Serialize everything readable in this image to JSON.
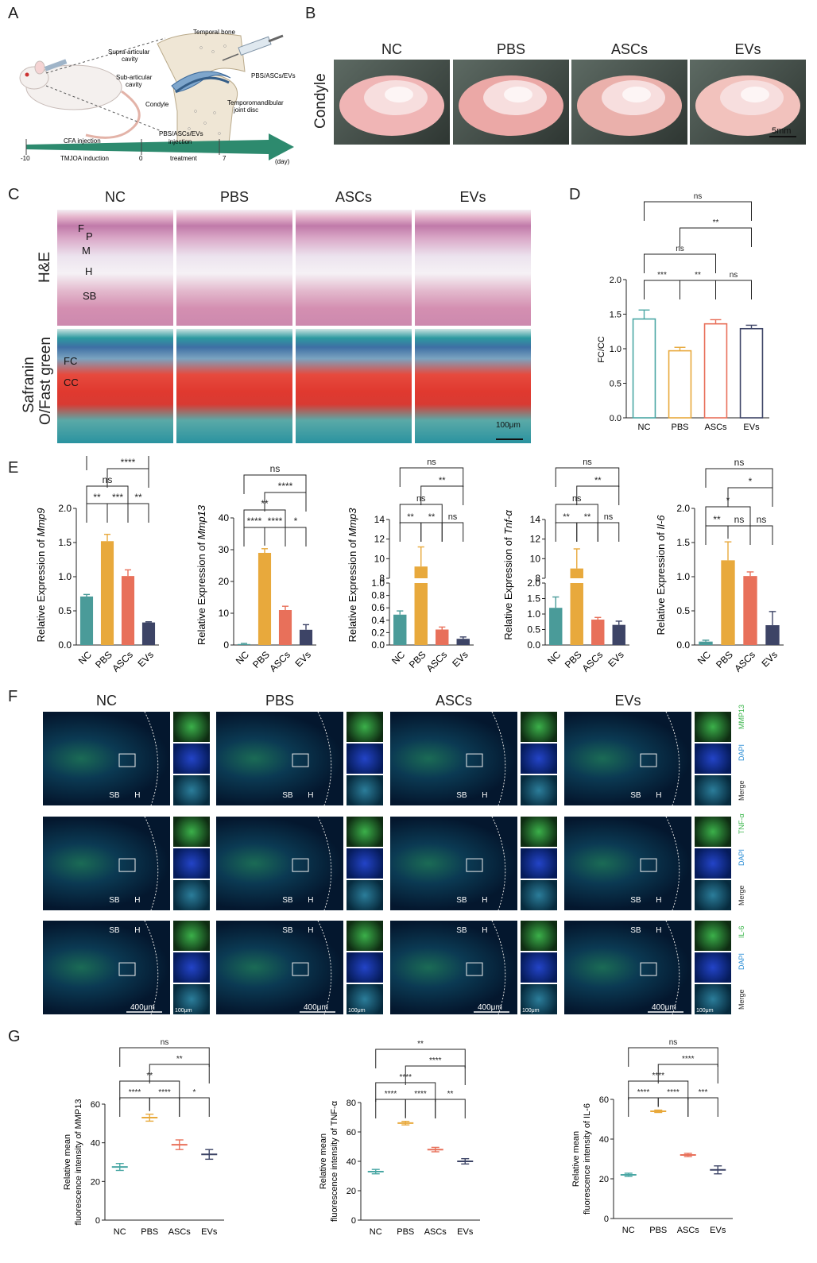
{
  "panels": {
    "a": "A",
    "b": "B",
    "c": "C",
    "d": "D",
    "e": "E",
    "f": "F",
    "g": "G"
  },
  "schematic": {
    "labels": {
      "temporal_bone": "Temporal bone",
      "supra": "Supra-articular",
      "supra2": "cavity",
      "sub": "Sub-articular",
      "sub2": "cavity",
      "condyle": "Condyle",
      "disc": "Temporomandibular",
      "disc2": "joint disc",
      "inj": "PBS/ASCs/EVs"
    },
    "timeline": {
      "cfa": "CFA injection",
      "tmjoa": "TMJOA induction",
      "pbs_inj": "PBS/ASCs/EVs",
      "pbs_inj2": "injection",
      "treatment": "treatment",
      "t_neg10": "-10",
      "t0": "0",
      "t7": "7",
      "day": "(day)"
    }
  },
  "groups": [
    "NC",
    "PBS",
    "ASCs",
    "EVs"
  ],
  "condyle_panel": {
    "row_label": "Condyle",
    "scale": "5mm"
  },
  "histology": {
    "row1": "H&E",
    "row2a": "Safranin",
    "row2b": "O/Fast green",
    "layers": [
      "F",
      "P",
      "M",
      "H",
      "SB"
    ],
    "layers2": [
      "FC",
      "CC"
    ],
    "scale": "100μm"
  },
  "chart_data": [
    {
      "id": "D",
      "type": "bar",
      "categories": [
        "NC",
        "PBS",
        "ASCs",
        "EVs"
      ],
      "values": [
        1.43,
        0.97,
        1.36,
        1.29
      ],
      "errors": [
        0.13,
        0.05,
        0.06,
        0.05
      ],
      "colors": [
        "#4aa7a4",
        "#e8a93c",
        "#e8705a",
        "#3d4466"
      ],
      "style": "outline",
      "ylabel": "FC/CC",
      "ylim": [
        0,
        2.0
      ],
      "yticks": [
        "0.0",
        "0.5",
        "1.0",
        "1.5",
        "2.0"
      ],
      "sig": [
        {
          "a": 0,
          "b": 1,
          "t": "***"
        },
        {
          "a": 1,
          "b": 2,
          "t": "**"
        },
        {
          "a": 2,
          "b": 3,
          "t": "ns"
        },
        {
          "a": 0,
          "b": 2,
          "t": "ns"
        },
        {
          "a": 1,
          "b": 3,
          "t": "**"
        },
        {
          "a": 0,
          "b": 3,
          "t": "ns"
        }
      ]
    },
    {
      "id": "E1",
      "type": "bar",
      "categories": [
        "NC",
        "PBS",
        "ASCs",
        "EVs"
      ],
      "values": [
        0.71,
        1.52,
        1.01,
        0.33
      ],
      "errors": [
        0.03,
        0.1,
        0.09,
        0.01
      ],
      "colors": [
        "#4a9b99",
        "#e8a93c",
        "#e8705a",
        "#3d4466"
      ],
      "style": "filled",
      "ylabel_pre": "Relative Expression of ",
      "ylabel_gene": "Mmp9",
      "ylim": [
        0,
        2.0
      ],
      "yticks": [
        "0.0",
        "0.5",
        "1.0",
        "1.5",
        "2.0"
      ],
      "sig": [
        {
          "a": 0,
          "b": 1,
          "t": "**"
        },
        {
          "a": 1,
          "b": 2,
          "t": "***"
        },
        {
          "a": 2,
          "b": 3,
          "t": "**"
        },
        {
          "a": 0,
          "b": 2,
          "t": "ns"
        },
        {
          "a": 1,
          "b": 3,
          "t": "****"
        },
        {
          "a": 0,
          "b": 3,
          "t": "*"
        }
      ]
    },
    {
      "id": "E2",
      "type": "bar",
      "categories": [
        "NC",
        "PBS",
        "ASCs",
        "EVs"
      ],
      "values": [
        0.3,
        29,
        11,
        4.8
      ],
      "errors": [
        0.2,
        1.3,
        1.2,
        1.6
      ],
      "colors": [
        "#4a9b99",
        "#e8a93c",
        "#e8705a",
        "#3d4466"
      ],
      "style": "filled",
      "ylabel_pre": "Relative Expression of ",
      "ylabel_gene": "Mmp13",
      "ylim": [
        0,
        40
      ],
      "yticks": [
        "0",
        "10",
        "20",
        "30",
        "40"
      ],
      "sig": [
        {
          "a": 0,
          "b": 1,
          "t": "****"
        },
        {
          "a": 1,
          "b": 2,
          "t": "****"
        },
        {
          "a": 2,
          "b": 3,
          "t": "*"
        },
        {
          "a": 0,
          "b": 2,
          "t": "**"
        },
        {
          "a": 1,
          "b": 3,
          "t": "****"
        },
        {
          "a": 0,
          "b": 3,
          "t": "ns"
        }
      ]
    },
    {
      "id": "E3",
      "type": "bar",
      "broken_axis": true,
      "categories": [
        "NC",
        "PBS",
        "ASCs",
        "EVs"
      ],
      "values": [
        0.49,
        9.2,
        0.25,
        0.1
      ],
      "errors": [
        0.06,
        2.0,
        0.04,
        0.03
      ],
      "colors": [
        "#4a9b99",
        "#e8a93c",
        "#e8705a",
        "#3d4466"
      ],
      "style": "filled",
      "ylabel_pre": "Relative Expression of ",
      "ylabel_gene": "Mmp3",
      "ylim_low": [
        0,
        1.0
      ],
      "ylim_high": [
        8,
        14
      ],
      "yticks_low": [
        "0.0",
        "0.2",
        "0.4",
        "0.6",
        "0.8",
        "1.0"
      ],
      "yticks_high": [
        "8",
        "10",
        "12",
        "14"
      ],
      "sig": [
        {
          "a": 0,
          "b": 1,
          "t": "**"
        },
        {
          "a": 1,
          "b": 2,
          "t": "**"
        },
        {
          "a": 2,
          "b": 3,
          "t": "ns"
        },
        {
          "a": 0,
          "b": 2,
          "t": "ns"
        },
        {
          "a": 1,
          "b": 3,
          "t": "**"
        },
        {
          "a": 0,
          "b": 3,
          "t": "ns"
        }
      ]
    },
    {
      "id": "E4",
      "type": "bar",
      "broken_axis": true,
      "categories": [
        "NC",
        "PBS",
        "ASCs",
        "EVs"
      ],
      "values": [
        1.2,
        9.0,
        0.82,
        0.65
      ],
      "errors": [
        0.35,
        2.0,
        0.07,
        0.12
      ],
      "colors": [
        "#4a9b99",
        "#e8a93c",
        "#e8705a",
        "#3d4466"
      ],
      "style": "filled",
      "ylabel_pre": "Relative Expression of ",
      "ylabel_gene": "Tnf-α",
      "ylim_low": [
        0,
        2.0
      ],
      "ylim_high": [
        8,
        14
      ],
      "yticks_low": [
        "0.0",
        "0.5",
        "1.0",
        "1.5",
        "2.0"
      ],
      "yticks_high": [
        "8",
        "10",
        "12",
        "14"
      ],
      "sig": [
        {
          "a": 0,
          "b": 1,
          "t": "**"
        },
        {
          "a": 1,
          "b": 2,
          "t": "**"
        },
        {
          "a": 2,
          "b": 3,
          "t": "ns"
        },
        {
          "a": 0,
          "b": 2,
          "t": "ns"
        },
        {
          "a": 1,
          "b": 3,
          "t": "**"
        },
        {
          "a": 0,
          "b": 3,
          "t": "ns"
        }
      ]
    },
    {
      "id": "E5",
      "type": "bar",
      "categories": [
        "NC",
        "PBS",
        "ASCs",
        "EVs"
      ],
      "values": [
        0.05,
        1.24,
        1.01,
        0.29
      ],
      "errors": [
        0.02,
        0.27,
        0.06,
        0.2
      ],
      "colors": [
        "#4a9b99",
        "#e8a93c",
        "#e8705a",
        "#3d4466"
      ],
      "style": "filled",
      "ylabel_pre": "Relative Expression of ",
      "ylabel_gene": "Il-6",
      "ylim": [
        0,
        2.0
      ],
      "yticks": [
        "0.0",
        "0.5",
        "1.0",
        "1.5",
        "2.0"
      ],
      "sig": [
        {
          "a": 0,
          "b": 1,
          "t": "**"
        },
        {
          "a": 1,
          "b": 2,
          "t": "ns"
        },
        {
          "a": 2,
          "b": 3,
          "t": "ns"
        },
        {
          "a": 0,
          "b": 2,
          "t": "*"
        },
        {
          "a": 1,
          "b": 3,
          "t": "*"
        },
        {
          "a": 0,
          "b": 3,
          "t": "ns"
        }
      ]
    },
    {
      "id": "G1",
      "type": "scatter",
      "categories": [
        "NC",
        "PBS",
        "ASCs",
        "EVs"
      ],
      "values": [
        27.5,
        53,
        39,
        34
      ],
      "errors": [
        1.8,
        1.8,
        2.5,
        2.5
      ],
      "colors": [
        "#4aa7a4",
        "#e8a93c",
        "#e8705a",
        "#3d4466"
      ],
      "ylabel1": "Relative mean",
      "ylabel2": "fluorescence intensity of MMP13",
      "ylim": [
        0,
        60
      ],
      "yticks": [
        "0",
        "20",
        "40",
        "60"
      ],
      "sig": [
        {
          "a": 0,
          "b": 1,
          "t": "****"
        },
        {
          "a": 1,
          "b": 2,
          "t": "****"
        },
        {
          "a": 2,
          "b": 3,
          "t": "*"
        },
        {
          "a": 0,
          "b": 2,
          "t": "**"
        },
        {
          "a": 1,
          "b": 3,
          "t": "**"
        },
        {
          "a": 0,
          "b": 3,
          "t": "ns"
        }
      ]
    },
    {
      "id": "G2",
      "type": "scatter",
      "categories": [
        "NC",
        "PBS",
        "ASCs",
        "EVs"
      ],
      "values": [
        33,
        66,
        48,
        40
      ],
      "errors": [
        1.5,
        1.2,
        1.5,
        1.8
      ],
      "colors": [
        "#4aa7a4",
        "#e8a93c",
        "#e8705a",
        "#3d4466"
      ],
      "ylabel1": "Relative mean",
      "ylabel2": "fluorescence intensity of TNF-α",
      "ylim": [
        0,
        80
      ],
      "yticks": [
        "0",
        "20",
        "40",
        "60",
        "80"
      ],
      "sig": [
        {
          "a": 0,
          "b": 1,
          "t": "****"
        },
        {
          "a": 1,
          "b": 2,
          "t": "****"
        },
        {
          "a": 2,
          "b": 3,
          "t": "**"
        },
        {
          "a": 0,
          "b": 2,
          "t": "****"
        },
        {
          "a": 1,
          "b": 3,
          "t": "****"
        },
        {
          "a": 0,
          "b": 3,
          "t": "**"
        }
      ]
    },
    {
      "id": "G3",
      "type": "scatter",
      "categories": [
        "NC",
        "PBS",
        "ASCs",
        "EVs"
      ],
      "values": [
        22,
        54,
        32,
        24.5
      ],
      "errors": [
        0.8,
        0.6,
        0.8,
        2.0
      ],
      "colors": [
        "#4aa7a4",
        "#e8a93c",
        "#e8705a",
        "#3d4466"
      ],
      "ylabel1": "Relative mean",
      "ylabel2": "fluorescence intensity of IL-6",
      "ylim": [
        0,
        60
      ],
      "yticks": [
        "0",
        "20",
        "40",
        "60"
      ],
      "sig": [
        {
          "a": 0,
          "b": 1,
          "t": "****"
        },
        {
          "a": 1,
          "b": 2,
          "t": "****"
        },
        {
          "a": 2,
          "b": 3,
          "t": "***"
        },
        {
          "a": 0,
          "b": 2,
          "t": "****"
        },
        {
          "a": 1,
          "b": 3,
          "t": "****"
        },
        {
          "a": 0,
          "b": 3,
          "t": "ns"
        }
      ]
    }
  ],
  "fluor": {
    "rows": [
      {
        "marker": "MMP13",
        "color": "#3ab54a"
      },
      {
        "marker": "TNF-α",
        "color": "#3ab54a"
      },
      {
        "marker": "IL-6",
        "color": "#3ab54a"
      }
    ],
    "dapi": "DAPI",
    "merge": "Merge",
    "sb": "SB",
    "h": "H",
    "scale_big": "400μm",
    "scale_small": "100μm"
  }
}
